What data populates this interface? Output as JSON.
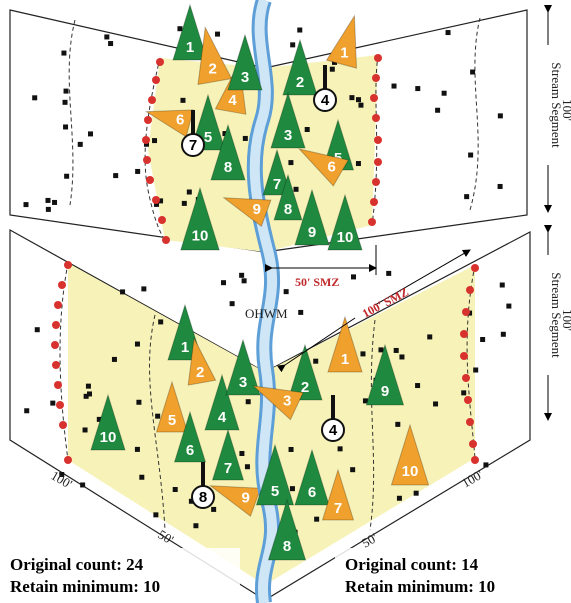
{
  "top_diagram": {
    "trees": [
      {
        "label": "1",
        "color": "#1f8a3f"
      },
      {
        "label": "2",
        "color": "#f0a02c"
      },
      {
        "label": "3",
        "color": "#1f8a3f"
      },
      {
        "label": "4",
        "color": "#f0a02c"
      },
      {
        "label": "2",
        "color": "#1f8a3f"
      },
      {
        "label": "1",
        "color": "#f0a02c"
      },
      {
        "label": "6",
        "color": "#f0a02c"
      },
      {
        "label": "5",
        "color": "#1f8a3f"
      },
      {
        "label": "3",
        "color": "#1f8a3f"
      },
      {
        "label": "8",
        "color": "#1f8a3f"
      },
      {
        "label": "5",
        "color": "#1f8a3f"
      },
      {
        "label": "7",
        "color": "#1f8a3f"
      },
      {
        "label": "6",
        "color": "#f0a02c"
      },
      {
        "label": "8",
        "color": "#1f8a3f"
      },
      {
        "label": "9",
        "color": "#f0a02c"
      },
      {
        "label": "9",
        "color": "#1f8a3f"
      },
      {
        "label": "10",
        "color": "#1f8a3f"
      },
      {
        "label": "10",
        "color": "#1f8a3f"
      }
    ],
    "snags": [
      "7",
      "4"
    ],
    "stream_segment": "Stream Segment",
    "segment_length": "100'",
    "smz_label": "50' SMZ",
    "ohwm": "OHWM"
  },
  "bottom_diagram": {
    "trees": [
      {
        "label": "1",
        "color": "#1f8a3f"
      },
      {
        "label": "2",
        "color": "#f0a02c"
      },
      {
        "label": "3",
        "color": "#1f8a3f"
      },
      {
        "label": "2",
        "color": "#1f8a3f"
      },
      {
        "label": "1",
        "color": "#f0a02c"
      },
      {
        "label": "9",
        "color": "#1f8a3f"
      },
      {
        "label": "5",
        "color": "#f0a02c"
      },
      {
        "label": "10",
        "color": "#1f8a3f"
      },
      {
        "label": "4",
        "color": "#1f8a3f"
      },
      {
        "label": "3",
        "color": "#f0a02c"
      },
      {
        "label": "6",
        "color": "#1f8a3f"
      },
      {
        "label": "7",
        "color": "#1f8a3f"
      },
      {
        "label": "10",
        "color": "#f0a02c"
      },
      {
        "label": "5",
        "color": "#1f8a3f"
      },
      {
        "label": "6",
        "color": "#1f8a3f"
      },
      {
        "label": "7",
        "color": "#f0a02c"
      },
      {
        "label": "9",
        "color": "#f0a02c"
      },
      {
        "label": "8",
        "color": "#1f8a3f"
      }
    ],
    "snags": [
      "4",
      "8"
    ],
    "stream_segment": "Stream Segment",
    "segment_length": "100'",
    "smz_label": "100' SMZ",
    "distance_labels": [
      "100'",
      "50'",
      "50'",
      "100'"
    ]
  },
  "captions": {
    "left": {
      "original": "Original count: 24",
      "retain": "Retain minimum: 10"
    },
    "right": {
      "original": "Original count: 14",
      "retain": "Retain minimum: 10"
    }
  }
}
